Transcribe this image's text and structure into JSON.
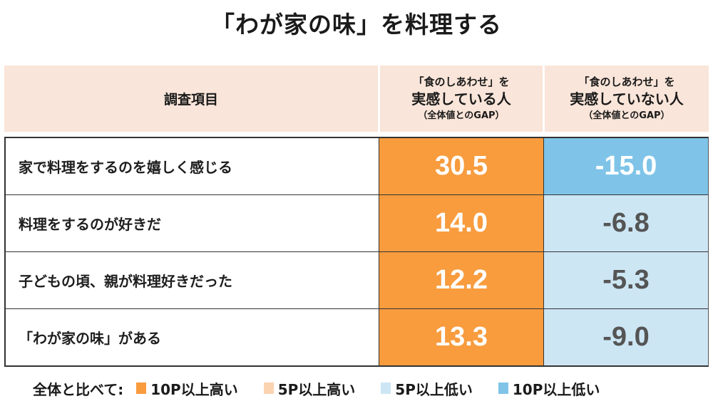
{
  "title": "「わが家の味」を料理する",
  "header": {
    "item_col": "調査項目",
    "col1": {
      "line1": "「食のしあわせ」を",
      "line2": "実感している人",
      "line3": "（全体値とのGAP）"
    },
    "col2": {
      "line1": "「食のしあわせ」を",
      "line2": "実感していない人",
      "line3": "（全体値とのGAP）"
    }
  },
  "colors": {
    "header_bg": "#f9e5d9",
    "high10": "#f89c3e",
    "high5": "#fbd3b0",
    "low5": "#cde6f4",
    "low10": "#7fc4e8",
    "text_on_dark": "#ffffff",
    "text_on_light": "#555555"
  },
  "rows": [
    {
      "label": "家で料理をするのを嬉しく感じる",
      "v1": "30.5",
      "v2": "-15.0",
      "c1": "high10",
      "c2": "low10"
    },
    {
      "label": "料理をするのが好きだ",
      "v1": "14.0",
      "v2": "-6.8",
      "c1": "high10",
      "c2": "low5"
    },
    {
      "label": "子どもの頃、親が料理好きだった",
      "v1": "12.2",
      "v2": "-5.3",
      "c1": "high10",
      "c2": "low5"
    },
    {
      "label": "「わが家の味」がある",
      "v1": "13.3",
      "v2": "-9.0",
      "c1": "high10",
      "c2": "low5"
    }
  ],
  "legend": {
    "lead": "全体と比べて:",
    "items": [
      {
        "label": "10P以上高い",
        "color": "#f89c3e"
      },
      {
        "label": "5P以上高い",
        "color": "#fbd3b0"
      },
      {
        "label": "5P以上低い",
        "color": "#cde6f4"
      },
      {
        "label": "10P以上低い",
        "color": "#7fc4e8"
      }
    ]
  },
  "chart_data": {
    "type": "table",
    "title": "「わが家の味」を料理する",
    "columns": [
      "調査項目",
      "「食のしあわせ」を実感している人（全体値とのGAP）",
      "「食のしあわせ」を実感していない人（全体値とのGAP）"
    ],
    "categories": [
      "家で料理をするのを嬉しく感じる",
      "料理をするのが好きだ",
      "子どもの頃、親が料理好きだった",
      "「わが家の味」がある"
    ],
    "series": [
      {
        "name": "「食のしあわせ」を実感している人（全体値とのGAP）",
        "values": [
          30.5,
          14.0,
          12.2,
          13.3
        ]
      },
      {
        "name": "「食のしあわせ」を実感していない人（全体値とのGAP）",
        "values": [
          -15.0,
          -6.8,
          -5.3,
          -9.0
        ]
      }
    ],
    "legend": [
      "10P以上高い",
      "5P以上高い",
      "5P以上低い",
      "10P以上低い"
    ],
    "legend_position": "bottom"
  }
}
